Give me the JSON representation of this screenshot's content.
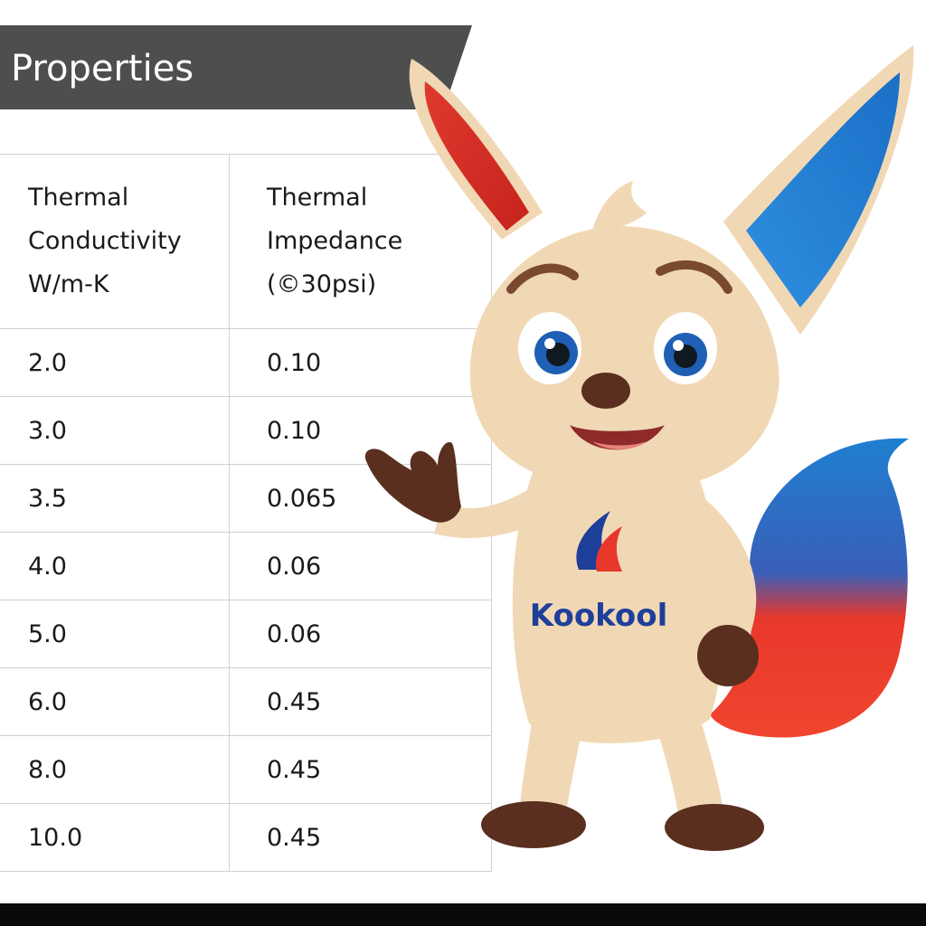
{
  "header": {
    "title": "Properties"
  },
  "table": {
    "columns": [
      {
        "lines": [
          "Thermal",
          "Conductivity",
          "W/m-K"
        ]
      },
      {
        "lines": [
          "Thermal",
          "Impedance",
          "(©30psi)"
        ]
      }
    ],
    "rows": [
      [
        "2.0",
        "0.10"
      ],
      [
        "3.0",
        "0.10"
      ],
      [
        "3.5",
        "0.065"
      ],
      [
        "4.0",
        "0.06"
      ],
      [
        "5.0",
        "0.06"
      ],
      [
        "6.0",
        "0.45"
      ],
      [
        "8.0",
        "0.45"
      ],
      [
        "10.0",
        "0.45"
      ]
    ]
  },
  "mascot": {
    "brand_text": "Kookool"
  },
  "colors": {
    "header_bg": "#4e4e4e",
    "header_text": "#ffffff",
    "table_border": "#cfcfcf",
    "fur": "#f1d8b5",
    "brand_blue": "#1e3f9a",
    "accent_red": "#e8382c",
    "accent_blue": "#1e7fd0",
    "paw_brown": "#5a2f1f"
  }
}
